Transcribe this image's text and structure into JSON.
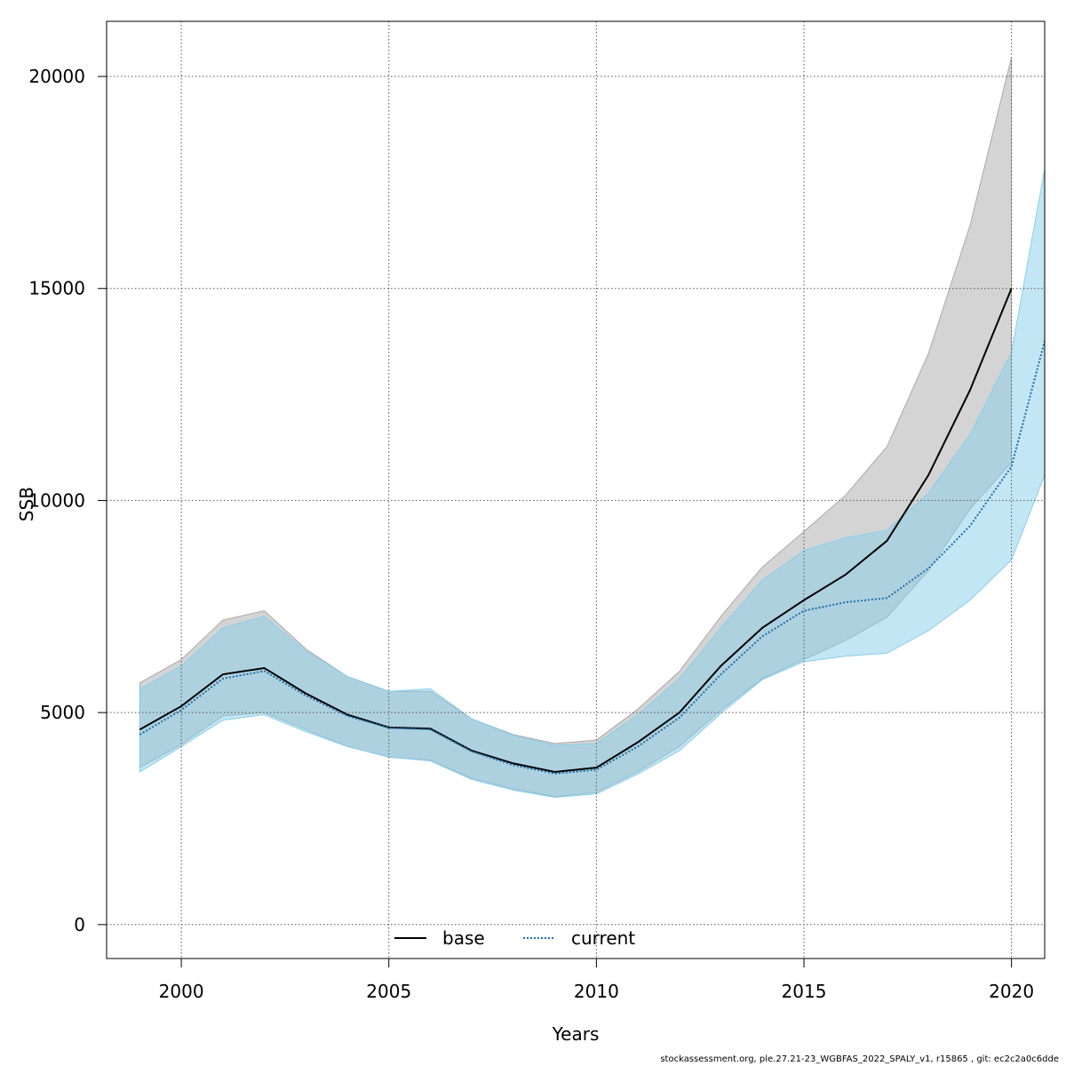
{
  "chart_data": {
    "type": "line",
    "xlabel": "Years",
    "ylabel": "SSB",
    "xlim": [
      1998.2,
      2020.8
    ],
    "ylim": [
      -800,
      21300
    ],
    "x_ticks": [
      2000,
      2005,
      2010,
      2015,
      2020
    ],
    "y_ticks": [
      0,
      5000,
      10000,
      15000,
      20000
    ],
    "grid": true,
    "legend_position": "bottom-center",
    "series": [
      {
        "name": "base",
        "line_color": "#000000",
        "line_style": "solid",
        "band_color": "#a9a9a9",
        "x": [
          1999,
          2000,
          2001,
          2002,
          2003,
          2004,
          2005,
          2006,
          2007,
          2008,
          2009,
          2010,
          2011,
          2012,
          2013,
          2014,
          2015,
          2016,
          2017,
          2018,
          2019,
          2020
        ],
        "values": [
          4600,
          5150,
          5900,
          6050,
          5450,
          4950,
          4650,
          4620,
          4100,
          3800,
          3600,
          3700,
          4300,
          5000,
          6100,
          7000,
          7650,
          8250,
          9050,
          10600,
          12600,
          15000
        ],
        "lower": [
          3700,
          4250,
          4920,
          5000,
          4600,
          4200,
          3950,
          3880,
          3450,
          3200,
          3020,
          3120,
          3600,
          4200,
          5050,
          5800,
          6250,
          6700,
          7250,
          8350,
          9800,
          10900
        ],
        "upper": [
          5700,
          6250,
          7180,
          7400,
          6500,
          5850,
          5500,
          5500,
          4850,
          4480,
          4270,
          4350,
          5080,
          5970,
          7270,
          8430,
          9270,
          10120,
          11270,
          13470,
          16480,
          20450
        ]
      },
      {
        "name": "current",
        "line_color": "#1e6fa8",
        "line_style": "dotted",
        "band_color": "#87ceeb",
        "x": [
          1999,
          2000,
          2001,
          2002,
          2003,
          2004,
          2005,
          2006,
          2007,
          2008,
          2009,
          2010,
          2011,
          2012,
          2013,
          2014,
          2015,
          2016,
          2017,
          2018,
          2019,
          2020,
          2021
        ],
        "values": [
          4480,
          5060,
          5800,
          5980,
          5400,
          4920,
          4640,
          4600,
          4080,
          3760,
          3560,
          3650,
          4200,
          4880,
          5900,
          6800,
          7400,
          7600,
          7700,
          8400,
          9400,
          10800,
          14500
        ],
        "lower": [
          3600,
          4200,
          4820,
          4950,
          4550,
          4200,
          3950,
          3860,
          3420,
          3170,
          3000,
          3080,
          3550,
          4100,
          4980,
          5780,
          6200,
          6330,
          6400,
          6930,
          7650,
          8600,
          11100
        ],
        "upper": [
          5550,
          6100,
          7000,
          7270,
          6450,
          5850,
          5500,
          5560,
          4850,
          4460,
          4230,
          4270,
          4950,
          5800,
          7000,
          8120,
          8820,
          9120,
          9300,
          10180,
          11550,
          13500,
          18900
        ]
      }
    ],
    "footer": "stockassessment.org, ple.27.21-23_WGBFAS_2022_SPALY_v1, r15865 , git: ec2c2a0c6dde"
  }
}
